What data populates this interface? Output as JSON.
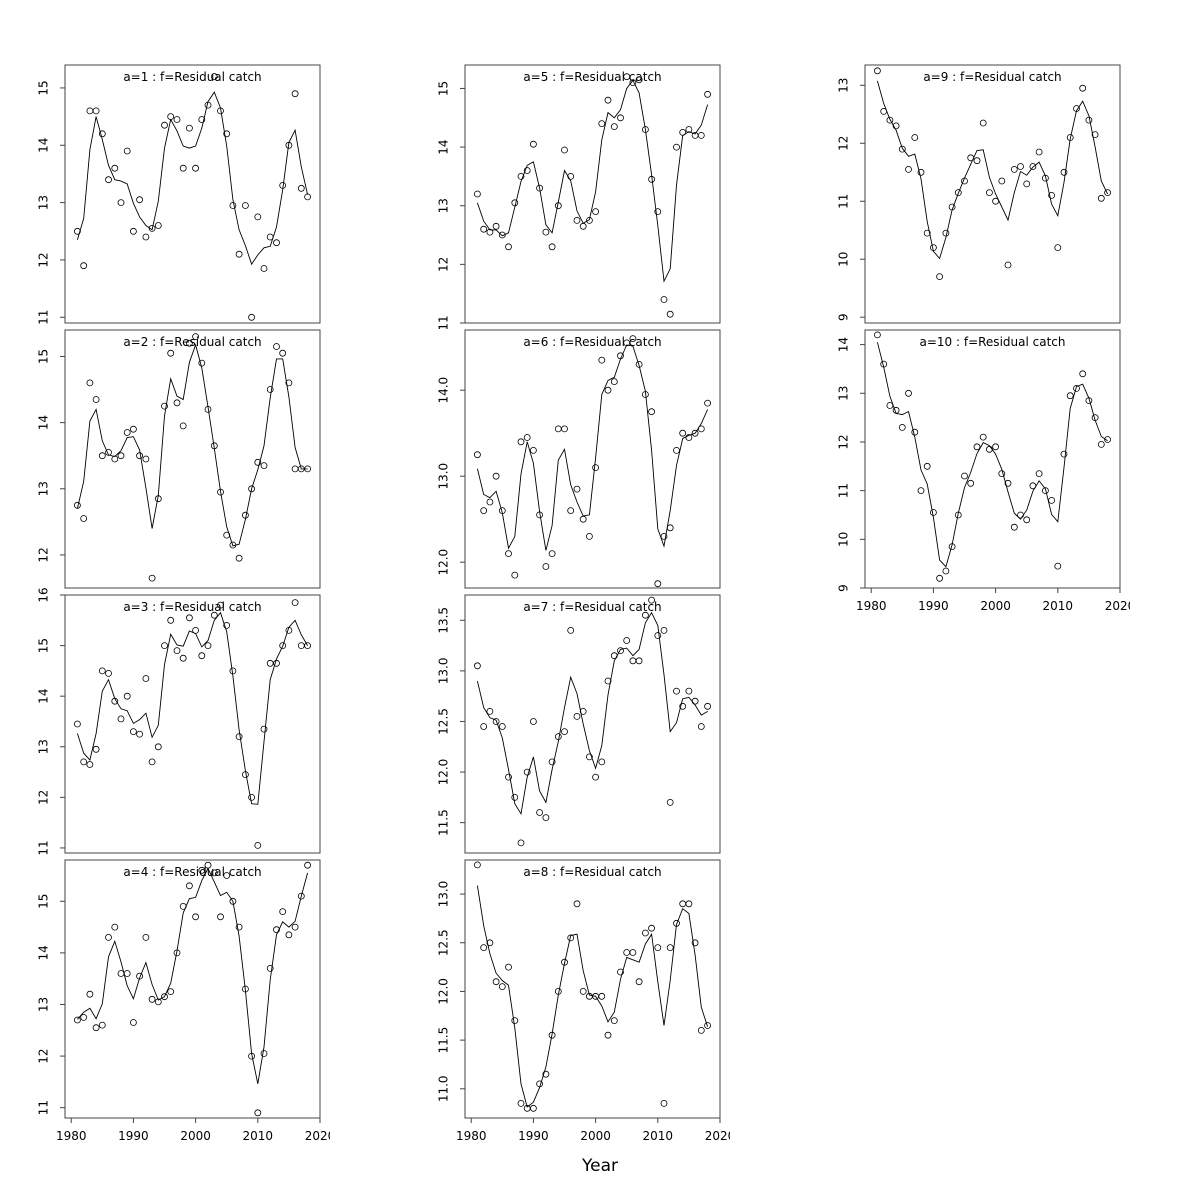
{
  "figure": {
    "xlabel": "Year",
    "x_ticks": [
      1980,
      1990,
      2000,
      2010,
      2020
    ],
    "xlim": [
      1979,
      2020
    ],
    "year_start": 1981,
    "year_end": 2018
  },
  "chart_data": [
    {
      "type": "line+scatter",
      "panel": "a=1",
      "title": "a=1 : f=Residual catch",
      "ylim": [
        10.9,
        15.4
      ],
      "yticks": [
        11,
        12,
        13,
        14,
        15
      ],
      "ytick_labels": [
        "11",
        "12",
        "13",
        "14",
        "15"
      ],
      "values": [
        12.5,
        11.9,
        14.6,
        14.6,
        14.2,
        13.4,
        13.6,
        13.0,
        13.9,
        12.5,
        13.05,
        12.4,
        12.55,
        12.6,
        14.35,
        14.5,
        14.45,
        13.6,
        14.3,
        13.6,
        14.45,
        14.7,
        15.2,
        14.6,
        14.2,
        12.95,
        12.1,
        12.95,
        11.0,
        12.75,
        11.85,
        12.4,
        12.3,
        13.3,
        14.0,
        14.9,
        13.25,
        13.1
      ]
    },
    {
      "type": "line+scatter",
      "panel": "a=2",
      "title": "a=2 : f=Residual catch",
      "ylim": [
        11.5,
        15.4
      ],
      "yticks": [
        12,
        13,
        14,
        15
      ],
      "ytick_labels": [
        "12",
        "13",
        "14",
        "15"
      ],
      "values": [
        12.75,
        12.55,
        14.6,
        14.35,
        13.5,
        13.55,
        13.45,
        13.5,
        13.85,
        13.9,
        13.5,
        13.45,
        11.65,
        12.85,
        14.25,
        15.05,
        14.3,
        13.95,
        15.2,
        15.3,
        14.9,
        14.2,
        13.65,
        12.95,
        12.3,
        12.15,
        11.95,
        12.6,
        13.0,
        13.4,
        13.35,
        14.5,
        15.15,
        15.05,
        14.6,
        13.3,
        13.3,
        13.3
      ]
    },
    {
      "type": "line+scatter",
      "panel": "a=3",
      "title": "a=3 : f=Residual catch",
      "ylim": [
        10.9,
        16.0
      ],
      "yticks": [
        11,
        12,
        13,
        14,
        15,
        16
      ],
      "ytick_labels": [
        "11",
        "12",
        "13",
        "14",
        "15",
        "16"
      ],
      "values": [
        13.45,
        12.7,
        12.65,
        12.95,
        14.5,
        14.45,
        13.9,
        13.55,
        14.0,
        13.3,
        13.25,
        14.35,
        12.7,
        13.0,
        15.0,
        15.5,
        14.9,
        14.75,
        15.55,
        15.3,
        14.8,
        15.0,
        15.6,
        15.8,
        15.4,
        14.5,
        13.2,
        12.45,
        12.0,
        11.05,
        13.35,
        14.65,
        14.65,
        15.0,
        15.3,
        15.85,
        15.0,
        15.0
      ]
    },
    {
      "type": "line+scatter",
      "panel": "a=4",
      "title": "a=4 : f=Residual catch",
      "ylim": [
        10.8,
        15.8
      ],
      "yticks": [
        11,
        12,
        13,
        14,
        15
      ],
      "ytick_labels": [
        "11",
        "12",
        "13",
        "14",
        "15"
      ],
      "values": [
        12.7,
        12.75,
        13.2,
        12.55,
        12.6,
        14.3,
        14.5,
        13.6,
        13.6,
        12.65,
        13.55,
        14.3,
        13.1,
        13.05,
        13.15,
        13.25,
        14.0,
        14.9,
        15.3,
        14.7,
        15.6,
        15.7,
        15.55,
        14.7,
        15.5,
        15.0,
        14.5,
        13.3,
        12.0,
        10.9,
        12.05,
        13.7,
        14.45,
        14.8,
        14.35,
        14.5,
        15.1,
        15.7
      ]
    },
    {
      "type": "line+scatter",
      "panel": "a=5",
      "title": "a=5 : f=Residual catch",
      "ylim": [
        11.0,
        15.4
      ],
      "yticks": [
        11,
        12,
        13,
        14,
        15
      ],
      "ytick_labels": [
        "11",
        "12",
        "13",
        "14",
        "15"
      ],
      "values": [
        13.2,
        12.6,
        12.55,
        12.65,
        12.5,
        12.3,
        13.05,
        13.5,
        13.6,
        14.05,
        13.3,
        12.55,
        12.3,
        13.0,
        13.95,
        13.5,
        12.75,
        12.65,
        12.75,
        12.9,
        14.4,
        14.8,
        14.35,
        14.5,
        15.2,
        15.1,
        15.15,
        14.3,
        13.45,
        12.9,
        11.4,
        11.15,
        14.0,
        14.25,
        14.3,
        14.2,
        14.2,
        14.9
      ]
    },
    {
      "type": "line+scatter",
      "panel": "a=6",
      "title": "a=6 : f=Residual catch",
      "ylim": [
        11.7,
        14.7
      ],
      "yticks": [
        12,
        13,
        14
      ],
      "ytick_labels": [
        "12.0",
        "13.0",
        "14.0"
      ],
      "values": [
        13.25,
        12.6,
        12.7,
        13.0,
        12.6,
        12.1,
        11.85,
        13.4,
        13.45,
        13.3,
        12.55,
        11.95,
        12.1,
        13.55,
        13.55,
        12.6,
        12.85,
        12.5,
        12.3,
        13.1,
        14.35,
        14.0,
        14.1,
        14.4,
        14.55,
        14.6,
        14.3,
        13.95,
        13.75,
        11.75,
        12.3,
        12.4,
        13.3,
        13.5,
        13.45,
        13.5,
        13.55,
        13.85
      ]
    },
    {
      "type": "line+scatter",
      "panel": "a=7",
      "title": "a=7 : f=Residual catch",
      "ylim": [
        11.2,
        13.75
      ],
      "yticks": [
        11.5,
        12.0,
        12.5,
        13.0,
        13.5
      ],
      "ytick_labels": [
        "11.5",
        "12.0",
        "12.5",
        "13.0",
        "13.5"
      ],
      "values": [
        13.05,
        12.45,
        12.6,
        12.5,
        12.45,
        11.95,
        11.75,
        11.3,
        12.0,
        12.5,
        11.6,
        11.55,
        12.1,
        12.35,
        12.4,
        13.4,
        12.55,
        12.6,
        12.15,
        11.95,
        12.1,
        12.9,
        13.15,
        13.2,
        13.3,
        13.1,
        13.1,
        13.55,
        13.7,
        13.35,
        13.4,
        11.7,
        12.8,
        12.65,
        12.8,
        12.7,
        12.45,
        12.65
      ]
    },
    {
      "type": "line+scatter",
      "panel": "a=8",
      "title": "a=8 : f=Residual catch",
      "ylim": [
        10.7,
        13.35
      ],
      "yticks": [
        11.0,
        11.5,
        12.0,
        12.5,
        13.0
      ],
      "ytick_labels": [
        "11.0",
        "11.5",
        "12.0",
        "12.5",
        "13.0"
      ],
      "values": [
        13.3,
        12.45,
        12.5,
        12.1,
        12.05,
        12.25,
        11.7,
        10.85,
        10.8,
        10.8,
        11.05,
        11.15,
        11.55,
        12.0,
        12.3,
        12.55,
        12.9,
        12.0,
        11.95,
        11.95,
        11.95,
        11.55,
        11.7,
        12.2,
        12.4,
        12.4,
        12.1,
        12.6,
        12.65,
        12.45,
        10.85,
        12.45,
        12.7,
        12.9,
        12.9,
        12.5,
        11.6,
        11.65
      ]
    },
    {
      "type": "line+scatter",
      "panel": "a=9",
      "title": "a=9 : f=Residual catch",
      "ylim": [
        8.9,
        13.35
      ],
      "yticks": [
        9,
        10,
        11,
        12,
        13
      ],
      "ytick_labels": [
        "9",
        "10",
        "11",
        "12",
        "13"
      ],
      "values": [
        13.25,
        12.55,
        12.4,
        12.3,
        11.9,
        11.55,
        12.1,
        11.5,
        10.45,
        10.2,
        9.7,
        10.45,
        10.9,
        11.15,
        11.35,
        11.75,
        11.7,
        12.35,
        11.15,
        11.0,
        11.35,
        9.9,
        11.55,
        11.6,
        11.3,
        11.6,
        11.85,
        11.4,
        11.1,
        10.2,
        11.5,
        12.1,
        12.6,
        12.95,
        12.4,
        12.15,
        11.05,
        11.15
      ]
    },
    {
      "type": "line+scatter",
      "panel": "a=10",
      "title": "a=10 : f=Residual catch",
      "ylim": [
        9.0,
        14.3
      ],
      "yticks": [
        9,
        10,
        11,
        12,
        13,
        14
      ],
      "ytick_labels": [
        "9",
        "10",
        "11",
        "12",
        "13",
        "14"
      ],
      "values": [
        14.2,
        13.6,
        12.75,
        12.65,
        12.3,
        13.0,
        12.2,
        11.0,
        11.5,
        10.55,
        9.2,
        9.35,
        9.85,
        10.5,
        11.3,
        11.15,
        11.9,
        12.1,
        11.85,
        11.9,
        11.35,
        11.15,
        10.25,
        10.5,
        10.4,
        11.1,
        11.35,
        11.0,
        10.8,
        9.45,
        11.75,
        12.95,
        13.1,
        13.4,
        12.85,
        12.5,
        11.95,
        12.05
      ]
    }
  ]
}
